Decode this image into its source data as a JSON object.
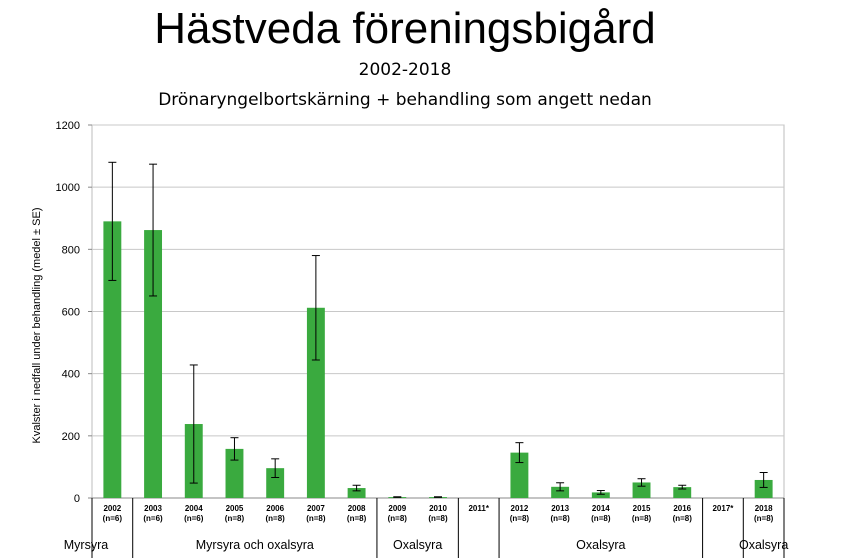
{
  "chart_data": {
    "type": "bar",
    "title": "Hästveda föreningsbigård",
    "subtitle": "2002-2018",
    "subtitle2": "Drönaryngelbortskärning + behandling som angett nedan",
    "ylabel": "Kvalster i nedfall under behandling (medel ± SE)",
    "ylim": [
      0,
      1200
    ],
    "yticks": [
      "0",
      "200",
      "400",
      "600",
      "800",
      "1000",
      "1200"
    ],
    "grid": true,
    "bar_color": "#3aaa3f",
    "categories": [
      {
        "year": "2002",
        "n": "(n=6)"
      },
      {
        "year": "2003",
        "n": "(n=6)"
      },
      {
        "year": "2004",
        "n": "(n=6)"
      },
      {
        "year": "2005",
        "n": "(n=8)"
      },
      {
        "year": "2006",
        "n": "(n=8)"
      },
      {
        "year": "2007",
        "n": "(n=8)"
      },
      {
        "year": "2008",
        "n": "(n=8)"
      },
      {
        "year": "2009",
        "n": "(n=8)"
      },
      {
        "year": "2010",
        "n": "(n=8)"
      },
      {
        "year": "2011*",
        "n": ""
      },
      {
        "year": "2012",
        "n": "(n=8)"
      },
      {
        "year": "2013",
        "n": "(n=8)"
      },
      {
        "year": "2014",
        "n": "(n=8)"
      },
      {
        "year": "2015",
        "n": "(n=8)"
      },
      {
        "year": "2016",
        "n": "(n=8)"
      },
      {
        "year": "2017*",
        "n": ""
      },
      {
        "year": "2018",
        "n": "(n=8)"
      }
    ],
    "values": [
      890,
      862,
      238,
      158,
      96,
      612,
      32,
      3,
      3,
      null,
      146,
      36,
      18,
      50,
      35,
      null,
      58
    ],
    "errors": [
      190,
      212,
      190,
      36,
      30,
      168,
      9,
      1,
      1,
      null,
      32,
      13,
      6,
      12,
      6,
      null,
      24
    ],
    "groups": [
      {
        "label": "Myrsyra",
        "span": [
          0,
          0
        ]
      },
      {
        "label": "Myrsyra och oxalsyra",
        "span": [
          1,
          6
        ]
      },
      {
        "label": "Oxalsyra",
        "span": [
          7,
          8
        ]
      },
      {
        "label": "",
        "span": [
          9,
          9
        ]
      },
      {
        "label": "Oxalsyra",
        "span": [
          10,
          14
        ]
      },
      {
        "label": "",
        "span": [
          15,
          15
        ]
      },
      {
        "label": "Oxalsyra",
        "span": [
          16,
          16
        ]
      }
    ]
  }
}
